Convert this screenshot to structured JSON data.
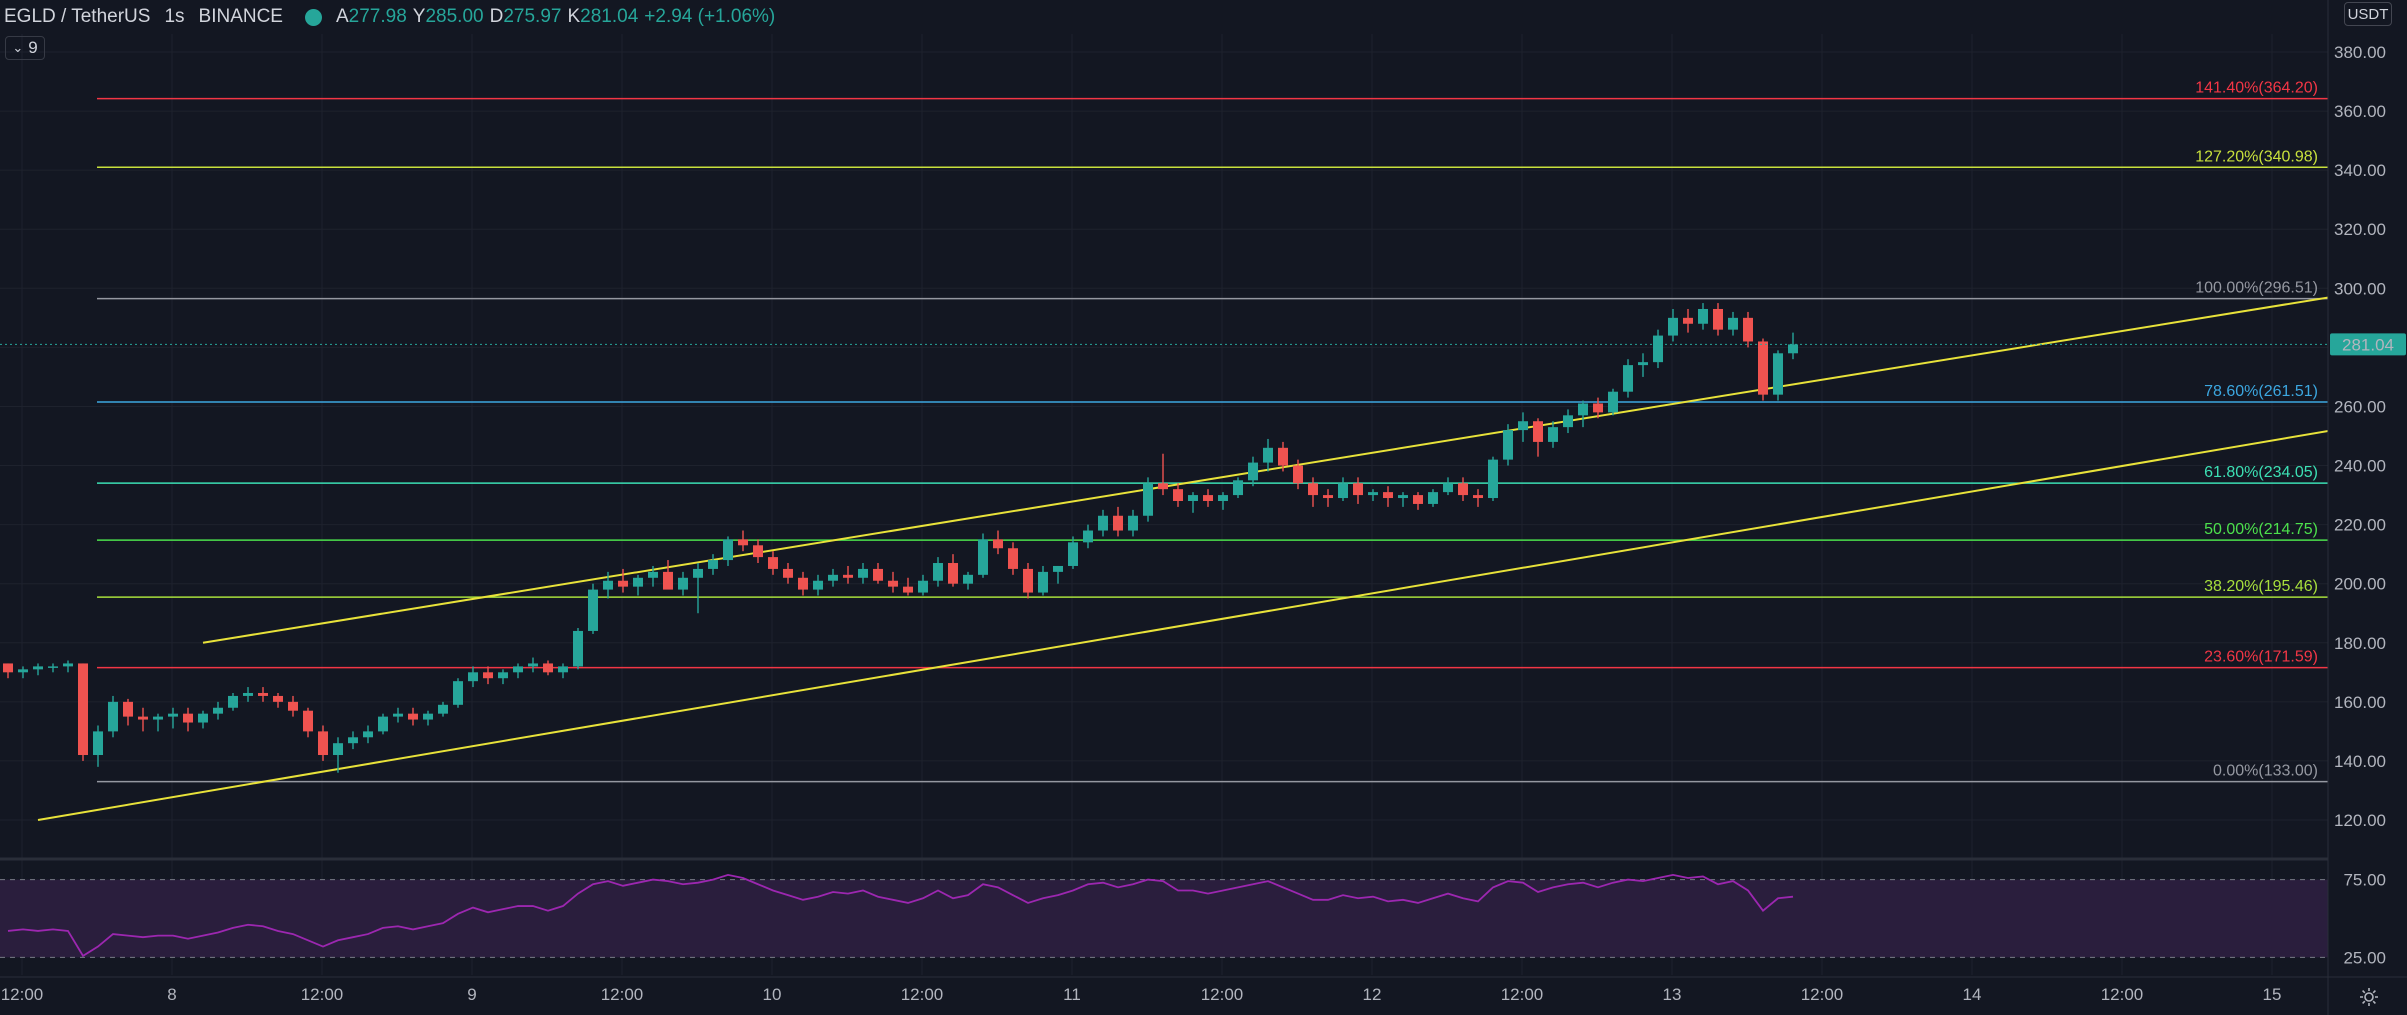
{
  "header": {
    "symbol": "EGLD / TetherUS",
    "interval": "1s",
    "exchange": "BINANCE",
    "open_label": "A",
    "open_value": "277.98",
    "high_label": "Y",
    "high_value": "285.00",
    "low_label": "D",
    "low_value": "275.97",
    "close_label": "K",
    "close_value": "281.04",
    "change_value": "+2.94 (+1.06%)",
    "indicator_count": "9"
  },
  "price_axis": {
    "currency": "USDT",
    "ticks": [
      "380.00",
      "360.00",
      "340.00",
      "320.00",
      "300.00",
      "280.00",
      "260.00",
      "240.00",
      "220.00",
      "200.00",
      "180.00",
      "160.00",
      "140.00",
      "120.00"
    ],
    "last_price": "281.04"
  },
  "rsi_axis": {
    "ticks": [
      "75.00",
      "25.00"
    ]
  },
  "time_axis": {
    "ticks": [
      "12:00",
      "8",
      "12:00",
      "9",
      "12:00",
      "10",
      "12:00",
      "11",
      "12:00",
      "12",
      "12:00",
      "13",
      "12:00",
      "14",
      "12:00",
      "15"
    ]
  },
  "fib_levels": [
    {
      "label": "141.40%(364.20)",
      "price": 364.2,
      "color": "#f23645"
    },
    {
      "label": "127.20%(340.98)",
      "price": 340.98,
      "color": "#c8e03c"
    },
    {
      "label": "100.00%(296.51)",
      "price": 296.51,
      "color": "#9598a1"
    },
    {
      "label": "78.60%(261.51)",
      "price": 261.51,
      "color": "#3ca7e0"
    },
    {
      "label": "61.80%(234.05)",
      "price": 234.05,
      "color": "#3ce0b4"
    },
    {
      "label": "50.00%(214.75)",
      "price": 214.75,
      "color": "#4ce04c"
    },
    {
      "label": "38.20%(195.46)",
      "price": 195.46,
      "color": "#a8e03c"
    },
    {
      "label": "23.60%(171.59)",
      "price": 171.59,
      "color": "#f23645"
    },
    {
      "label": "0.00%(133.00)",
      "price": 133.0,
      "color": "#9598a1"
    }
  ],
  "colors": {
    "background": "#131722",
    "up": "#26a69a",
    "down": "#ef5350",
    "channel": "#e8e23a",
    "rsi_line": "#9c27b0",
    "rsi_band": "#2a1e3d",
    "grid": "#1e222d",
    "last_price_badge": "#26a69a"
  },
  "chart_data": {
    "type": "candlestick",
    "y_range": [
      110,
      390
    ],
    "rsi_range": [
      15,
      85
    ],
    "channel_lines": [
      {
        "from": {
          "bar": 13,
          "price": 180
        },
        "to": {
          "bar": 213,
          "price": 345
        }
      },
      {
        "from": {
          "bar": 2,
          "price": 120
        },
        "to": {
          "bar": 213,
          "price": 302
        }
      }
    ],
    "candles": [
      [
        173,
        173,
        168,
        170
      ],
      [
        170,
        172,
        168,
        171
      ],
      [
        171,
        173,
        169,
        172
      ],
      [
        172,
        173,
        170,
        172
      ],
      [
        172,
        174,
        170,
        173
      ],
      [
        173,
        173,
        140,
        142
      ],
      [
        142,
        152,
        138,
        150
      ],
      [
        150,
        162,
        148,
        160
      ],
      [
        160,
        161,
        152,
        155
      ],
      [
        155,
        158,
        150,
        154
      ],
      [
        154,
        156,
        150,
        155
      ],
      [
        155,
        158,
        151,
        156
      ],
      [
        156,
        158,
        150,
        153
      ],
      [
        153,
        157,
        151,
        156
      ],
      [
        156,
        160,
        154,
        158
      ],
      [
        158,
        163,
        157,
        162
      ],
      [
        162,
        165,
        160,
        163
      ],
      [
        163,
        165,
        160,
        162
      ],
      [
        162,
        163,
        158,
        160
      ],
      [
        160,
        162,
        155,
        157
      ],
      [
        157,
        158,
        148,
        150
      ],
      [
        150,
        152,
        140,
        142
      ],
      [
        142,
        148,
        136,
        146
      ],
      [
        146,
        150,
        144,
        148
      ],
      [
        148,
        152,
        146,
        150
      ],
      [
        150,
        156,
        149,
        155
      ],
      [
        155,
        158,
        153,
        156
      ],
      [
        156,
        158,
        152,
        154
      ],
      [
        154,
        157,
        152,
        156
      ],
      [
        156,
        160,
        155,
        159
      ],
      [
        159,
        168,
        158,
        167
      ],
      [
        167,
        172,
        165,
        170
      ],
      [
        170,
        172,
        166,
        168
      ],
      [
        168,
        171,
        166,
        170
      ],
      [
        170,
        173,
        168,
        172
      ],
      [
        172,
        175,
        170,
        173
      ],
      [
        173,
        174,
        169,
        170
      ],
      [
        170,
        173,
        168,
        172
      ],
      [
        172,
        185,
        171,
        184
      ],
      [
        184,
        200,
        183,
        198
      ],
      [
        198,
        204,
        195,
        201
      ],
      [
        201,
        205,
        197,
        199
      ],
      [
        199,
        203,
        196,
        202
      ],
      [
        202,
        206,
        199,
        204
      ],
      [
        204,
        208,
        200,
        198
      ],
      [
        198,
        204,
        196,
        202
      ],
      [
        202,
        207,
        190,
        205
      ],
      [
        205,
        210,
        203,
        208
      ],
      [
        208,
        216,
        206,
        215
      ],
      [
        215,
        218,
        211,
        213
      ],
      [
        213,
        215,
        207,
        209
      ],
      [
        209,
        211,
        203,
        205
      ],
      [
        205,
        207,
        200,
        202
      ],
      [
        202,
        204,
        196,
        198
      ],
      [
        198,
        203,
        196,
        201
      ],
      [
        201,
        205,
        199,
        203
      ],
      [
        203,
        206,
        200,
        202
      ],
      [
        202,
        207,
        200,
        205
      ],
      [
        205,
        207,
        200,
        201
      ],
      [
        201,
        204,
        197,
        199
      ],
      [
        199,
        202,
        196,
        197
      ],
      [
        197,
        203,
        196,
        201
      ],
      [
        201,
        209,
        199,
        207
      ],
      [
        207,
        210,
        199,
        200
      ],
      [
        200,
        204,
        198,
        203
      ],
      [
        203,
        217,
        202,
        215
      ],
      [
        215,
        218,
        210,
        212
      ],
      [
        212,
        214,
        203,
        205
      ],
      [
        205,
        207,
        195,
        197
      ],
      [
        197,
        206,
        196,
        204
      ],
      [
        204,
        206,
        200,
        206
      ],
      [
        206,
        216,
        205,
        214
      ],
      [
        214,
        220,
        212,
        218
      ],
      [
        218,
        225,
        216,
        223
      ],
      [
        223,
        226,
        216,
        218
      ],
      [
        218,
        225,
        216,
        223
      ],
      [
        223,
        236,
        221,
        234
      ],
      [
        234,
        244,
        230,
        232
      ],
      [
        232,
        234,
        226,
        228
      ],
      [
        228,
        231,
        224,
        230
      ],
      [
        230,
        232,
        226,
        228
      ],
      [
        228,
        231,
        225,
        230
      ],
      [
        230,
        236,
        229,
        235
      ],
      [
        235,
        243,
        233,
        241
      ],
      [
        241,
        249,
        238,
        246
      ],
      [
        246,
        248,
        238,
        240
      ],
      [
        240,
        242,
        232,
        234
      ],
      [
        234,
        236,
        226,
        230
      ],
      [
        230,
        232,
        226,
        229
      ],
      [
        229,
        236,
        228,
        234
      ],
      [
        234,
        236,
        227,
        230
      ],
      [
        230,
        232,
        228,
        231
      ],
      [
        231,
        233,
        226,
        229
      ],
      [
        229,
        231,
        226,
        230
      ],
      [
        230,
        231,
        225,
        227
      ],
      [
        227,
        232,
        226,
        231
      ],
      [
        231,
        236,
        230,
        234
      ],
      [
        234,
        236,
        228,
        230
      ],
      [
        230,
        232,
        226,
        229
      ],
      [
        229,
        243,
        228,
        242
      ],
      [
        242,
        254,
        240,
        252
      ],
      [
        252,
        258,
        248,
        255
      ],
      [
        255,
        256,
        243,
        248
      ],
      [
        248,
        255,
        246,
        253
      ],
      [
        253,
        259,
        251,
        257
      ],
      [
        257,
        262,
        253,
        261
      ],
      [
        261,
        263,
        256,
        258
      ],
      [
        258,
        266,
        257,
        265
      ],
      [
        265,
        276,
        263,
        274
      ],
      [
        274,
        278,
        270,
        275
      ],
      [
        275,
        286,
        273,
        284
      ],
      [
        284,
        293,
        282,
        290
      ],
      [
        290,
        293,
        285,
        288
      ],
      [
        288,
        295,
        286,
        293
      ],
      [
        293,
        295,
        284,
        286
      ],
      [
        286,
        292,
        284,
        290
      ],
      [
        290,
        292,
        280,
        282
      ],
      [
        282,
        283,
        262,
        264
      ],
      [
        264,
        279,
        262,
        278
      ],
      [
        278,
        285,
        276,
        281
      ]
    ],
    "rsi": [
      42,
      43,
      42,
      43,
      42,
      26,
      32,
      40,
      39,
      38,
      39,
      39,
      37,
      39,
      41,
      44,
      46,
      45,
      42,
      40,
      36,
      32,
      36,
      38,
      40,
      44,
      45,
      43,
      45,
      47,
      53,
      57,
      54,
      56,
      58,
      58,
      55,
      58,
      66,
      72,
      74,
      71,
      73,
      75,
      74,
      72,
      73,
      75,
      78,
      76,
      72,
      68,
      65,
      62,
      64,
      67,
      66,
      68,
      64,
      62,
      60,
      63,
      68,
      63,
      65,
      72,
      70,
      65,
      60,
      63,
      65,
      68,
      72,
      73,
      70,
      72,
      75,
      74,
      68,
      68,
      66,
      68,
      70,
      72,
      74,
      70,
      66,
      62,
      62,
      65,
      63,
      64,
      61,
      62,
      60,
      63,
      66,
      63,
      61,
      70,
      74,
      73,
      67,
      70,
      72,
      73,
      70,
      73,
      75,
      74,
      76,
      78,
      76,
      77,
      72,
      74,
      68,
      55,
      63,
      64
    ]
  }
}
